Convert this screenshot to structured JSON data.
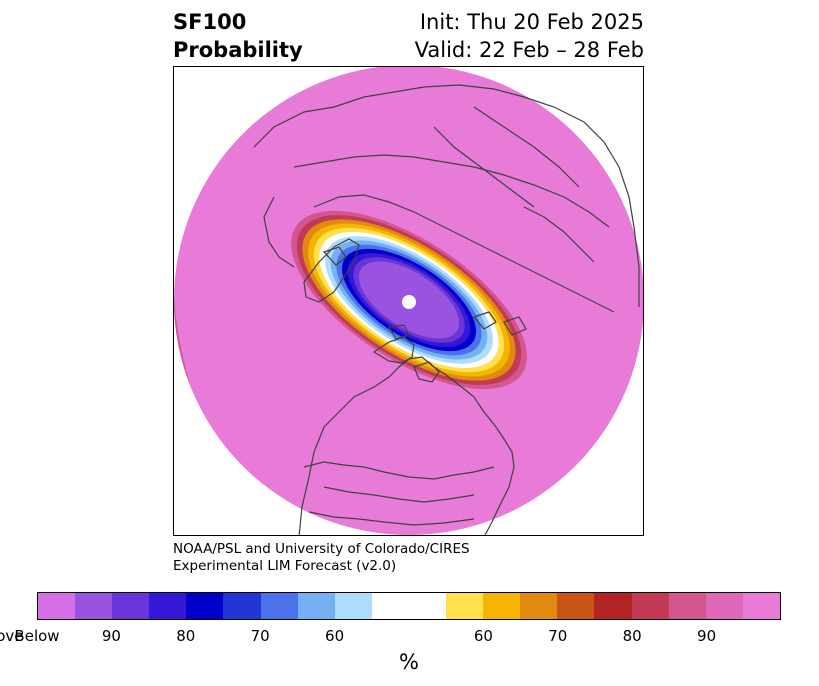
{
  "header": {
    "title_line1": "SF100",
    "title_line2": "Probability",
    "init_text": "Init: Thu 20 Feb 2025",
    "valid_text": "Valid: 22 Feb – 28 Feb"
  },
  "credit": {
    "line1": "NOAA/PSL and University of Colorado/CIRES",
    "line2": "Experimental LIM Forecast (v2.0)"
  },
  "colorbar": {
    "unit": "%",
    "segments": [
      "#d66ee6",
      "#9a52e0",
      "#6b36d9",
      "#3418d6",
      "#0000cc",
      "#2236d6",
      "#4b72e8",
      "#73b0f4",
      "#aedcfc",
      "#ffffff",
      "#ffe14d",
      "#f4b400",
      "#e08a0f",
      "#c85418",
      "#b42323",
      "#c23a55",
      "#d3568e",
      "#e068b8",
      "#e87ad8"
    ],
    "segment_weights": [
      1,
      1,
      1,
      1,
      1,
      1,
      1,
      1,
      1,
      2,
      1,
      1,
      1,
      1,
      1,
      1,
      1,
      1,
      1
    ],
    "tick_labels": [
      "Below",
      "90",
      "80",
      "70",
      "60",
      "60",
      "70",
      "80",
      "90",
      "Above"
    ]
  },
  "map": {
    "background_color": "#e87ad8",
    "coast_color": "#404040",
    "pole_marker_color": "#ffffff",
    "anomaly_rings_below": [
      "#d3568e",
      "#c23a55",
      "#e08a0f",
      "#f4b400",
      "#ffe14d",
      "#ffffff",
      "#aedcfc",
      "#73b0f4",
      "#4b72e8",
      "#0000cc",
      "#3418d6",
      "#6b36d9",
      "#9a52e0"
    ]
  }
}
